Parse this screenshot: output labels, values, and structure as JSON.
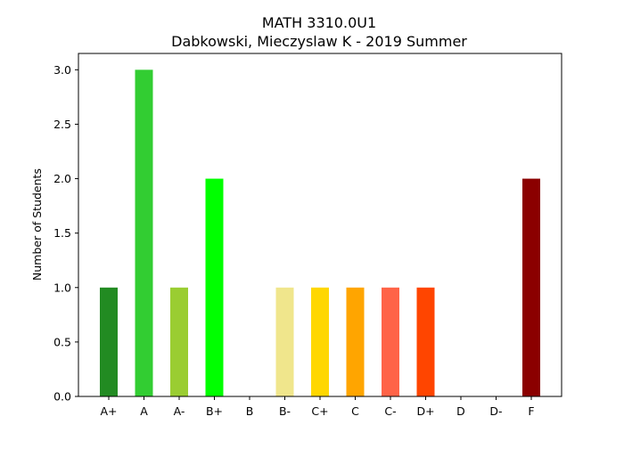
{
  "chart_data": {
    "type": "bar",
    "title": "MATH 3310.0U1",
    "subtitle": "Dabkowski, Mieczyslaw K - 2019 Summer",
    "xlabel": "",
    "ylabel": "Number of Students",
    "categories": [
      "A+",
      "A",
      "A-",
      "B+",
      "B",
      "B-",
      "C+",
      "C",
      "C-",
      "D+",
      "D",
      "D-",
      "F"
    ],
    "values": [
      1,
      3,
      1,
      2,
      0,
      1,
      1,
      1,
      1,
      1,
      0,
      0,
      2
    ],
    "colors": [
      "#228b22",
      "#32cd32",
      "#9acd32",
      "#00ff00",
      "#adff2f",
      "#f0e68c",
      "#ffd700",
      "#ffa500",
      "#ff6347",
      "#ff4500",
      "#dc143c",
      "#b22222",
      "#8b0000"
    ],
    "ylim": [
      0,
      3.15
    ],
    "yticks": [
      "0.0",
      "0.5",
      "1.0",
      "1.5",
      "2.0",
      "2.5",
      "3.0"
    ],
    "grid": false,
    "legend": "none"
  }
}
